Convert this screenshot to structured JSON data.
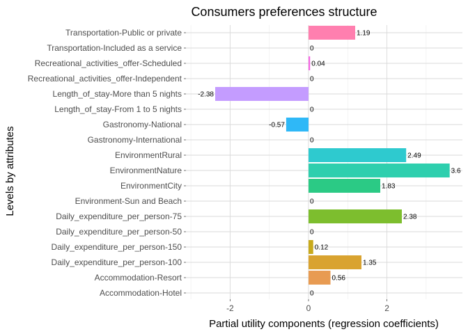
{
  "chart_data": {
    "type": "bar",
    "orientation": "horizontal",
    "title": "Consumers preferences structure",
    "xlabel": "Partial utility components (regression coefficients)",
    "ylabel": "Levels by attributes",
    "xlim": [
      -2.9,
      3.6
    ],
    "x_ticks": [
      -2,
      0,
      2
    ],
    "grid": true,
    "legend": "none",
    "bars": [
      {
        "label": "Transportation-Public or private",
        "value": 1.19,
        "value_text": "1.19",
        "color": "#FF7FAF"
      },
      {
        "label": "Transportation-Included as a service",
        "value": 0,
        "value_text": "0",
        "color": "#FF6C91"
      },
      {
        "label": "Recreational_activities_offer-Scheduled",
        "value": 0.04,
        "value_text": "0.04",
        "color": "#F564E3"
      },
      {
        "label": "Recreational_activities_offer-Independent",
        "value": 0,
        "value_text": "0",
        "color": "#DC71FA"
      },
      {
        "label": "Length_of_stay-More than 5 nights",
        "value": -2.38,
        "value_text": "-2.38",
        "color": "#C49CFF"
      },
      {
        "label": "Length_of_stay-From 1 to 5 nights",
        "value": 0,
        "value_text": "0",
        "color": "#9590FF"
      },
      {
        "label": "Gastronomy-National",
        "value": -0.57,
        "value_text": "-0.57",
        "color": "#2FB8F7"
      },
      {
        "label": "Gastronomy-International",
        "value": 0,
        "value_text": "0",
        "color": "#00B0F6"
      },
      {
        "label": "EnvironmentRural",
        "value": 2.49,
        "value_text": "2.49",
        "color": "#2ECACF"
      },
      {
        "label": "EnvironmentNature",
        "value": 3.6,
        "value_text": "3.6",
        "color": "#2ECFAE"
      },
      {
        "label": "EnvironmentCity",
        "value": 1.83,
        "value_text": "1.83",
        "color": "#2BCA85"
      },
      {
        "label": "Environment-Sun and Beach",
        "value": 0,
        "value_text": "0",
        "color": "#00BA38"
      },
      {
        "label": "Daily_expenditure_per_person-75",
        "value": 2.38,
        "value_text": "2.38",
        "color": "#7DBE2E"
      },
      {
        "label": "Daily_expenditure_per_person-50",
        "value": 0,
        "value_text": "0",
        "color": "#7CAE00"
      },
      {
        "label": "Daily_expenditure_per_person-150",
        "value": 0.12,
        "value_text": "0.12",
        "color": "#C8AA1D"
      },
      {
        "label": "Daily_expenditure_per_person-100",
        "value": 1.35,
        "value_text": "1.35",
        "color": "#D9A330"
      },
      {
        "label": "Accommodation-Resort",
        "value": 0.56,
        "value_text": "0.56",
        "color": "#E89B52"
      },
      {
        "label": "Accommodation-Hotel",
        "value": 0,
        "value_text": "0",
        "color": "#F8766D"
      }
    ]
  }
}
